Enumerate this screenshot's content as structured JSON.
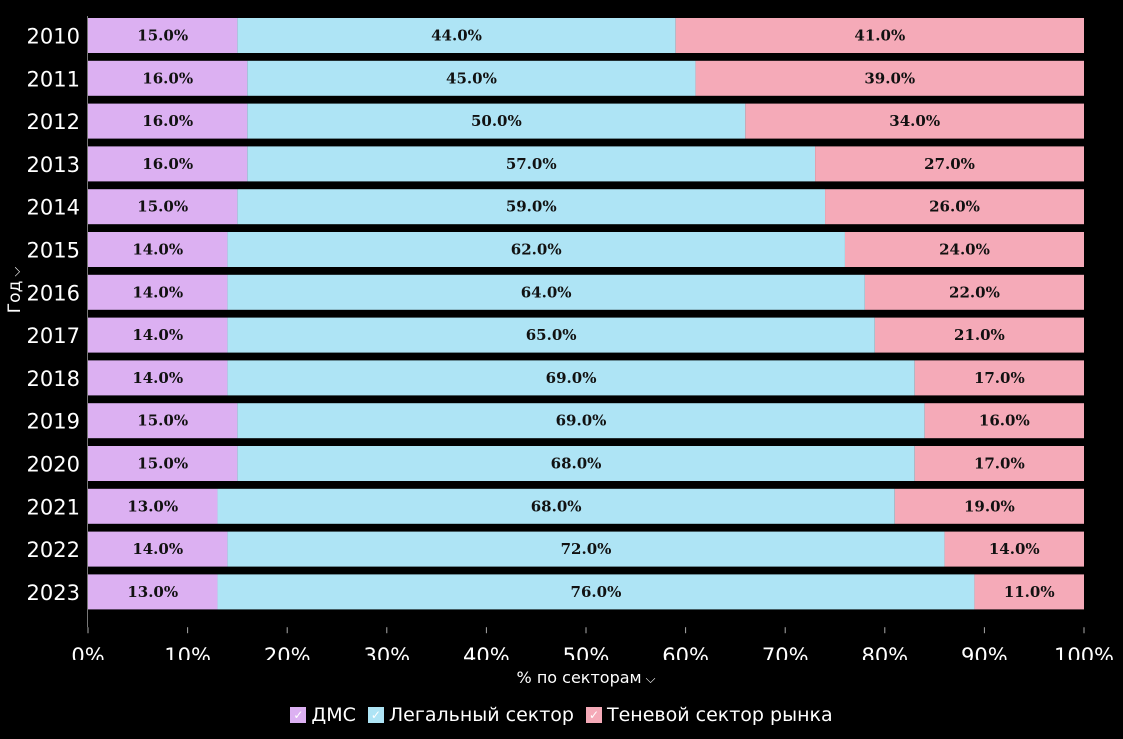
{
  "chart_data": {
    "type": "bar",
    "orientation": "horizontal",
    "stacked": "percent",
    "categories": [
      "2010",
      "2011",
      "2012",
      "2013",
      "2014",
      "2015",
      "2016",
      "2017",
      "2018",
      "2019",
      "2020",
      "2021",
      "2022",
      "2023"
    ],
    "series": [
      {
        "name": "ДМС",
        "color": "#dcb0f2",
        "values": [
          15,
          16,
          16,
          16,
          15,
          14,
          14,
          14,
          14,
          15,
          15,
          13,
          14,
          13
        ]
      },
      {
        "name": "Легальный сектор",
        "color": "#aee4f5",
        "values": [
          44,
          45,
          50,
          57,
          59,
          62,
          64,
          65,
          69,
          69,
          68,
          68,
          72,
          76
        ]
      },
      {
        "name": "Теневой сектор рынка",
        "color": "#f5aab8",
        "values": [
          41,
          39,
          34,
          27,
          26,
          24,
          22,
          21,
          17,
          16,
          17,
          19,
          14,
          11
        ]
      }
    ],
    "xticks": [
      "0%",
      "10%",
      "20%",
      "30%",
      "40%",
      "50%",
      "60%",
      "70%",
      "80%",
      "90%",
      "100%"
    ],
    "xlim": [
      0,
      100
    ],
    "xlabel": "% по секторам",
    "ylabel": "Год",
    "legend_position": "bottom",
    "grid": false
  },
  "ui": {
    "xlabel_chevron": "⌵",
    "ylabel_chevron": "⌵",
    "legend_check": "✓"
  }
}
